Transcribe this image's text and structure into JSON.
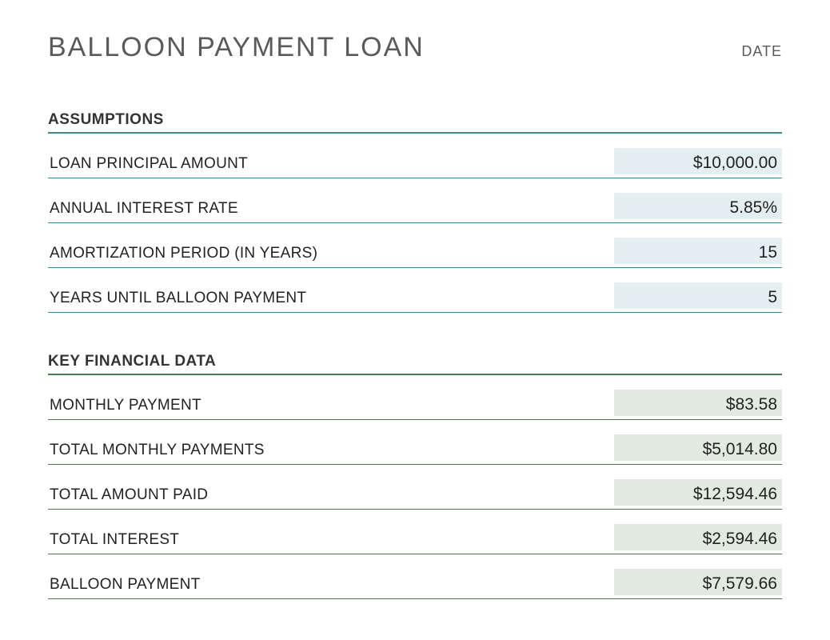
{
  "header": {
    "title": "BALLOON PAYMENT LOAN",
    "date_label": "DATE"
  },
  "sections": {
    "assumptions": {
      "heading": "ASSUMPTIONS",
      "header_border_color": "#3d8a8a",
      "row_border_color": "#3d8a8a",
      "value_bg_color": "#e3eff0",
      "rows": [
        {
          "label": "LOAN PRINCIPAL AMOUNT",
          "value": "$10,000.00"
        },
        {
          "label": "ANNUAL INTEREST RATE",
          "value": "5.85%"
        },
        {
          "label": "AMORTIZATION PERIOD (IN YEARS)",
          "value": "15"
        },
        {
          "label": "YEARS UNTIL BALLOON PAYMENT",
          "value": "5"
        }
      ]
    },
    "keydata": {
      "heading": "KEY FINANCIAL DATA",
      "header_border_color": "#4a7a4a",
      "row_border_color": "#4a7a4a",
      "value_bg_color": "#e2ebe0",
      "rows": [
        {
          "label": "MONTHLY PAYMENT",
          "value": "$83.58"
        },
        {
          "label": "TOTAL MONTHLY PAYMENTS",
          "value": "$5,014.80"
        },
        {
          "label": "TOTAL AMOUNT PAID",
          "value": "$12,594.46"
        },
        {
          "label": "TOTAL INTEREST",
          "value": "$2,594.46"
        },
        {
          "label": "BALLOON PAYMENT",
          "value": "$7,579.66"
        }
      ]
    }
  },
  "styling": {
    "background_color": "#ffffff",
    "title_color": "#5a5a5a",
    "title_fontsize": 34,
    "section_heading_fontsize": 19,
    "label_fontsize": 19,
    "value_fontsize": 21,
    "text_color": "#222222"
  }
}
